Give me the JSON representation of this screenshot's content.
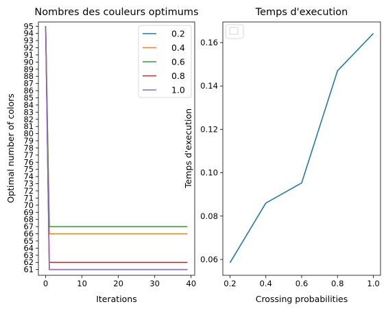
{
  "chart_data": [
    {
      "type": "line",
      "title": "Nombres des couleurs optimums",
      "xlabel": "Iterations",
      "ylabel": "Optimal number of colors",
      "xlim": [
        -2,
        41
      ],
      "ylim": [
        60.2,
        95.6
      ],
      "xticks": [
        0,
        10,
        20,
        30,
        40
      ],
      "yticks": [
        61,
        62,
        63,
        64,
        65,
        66,
        67,
        68,
        69,
        70,
        71,
        72,
        73,
        74,
        75,
        76,
        77,
        78,
        79,
        80,
        81,
        82,
        83,
        84,
        85,
        86,
        87,
        88,
        89,
        90,
        91,
        92,
        93,
        94,
        95
      ],
      "grid": false,
      "legend_position": "top-right",
      "series": [
        {
          "name": "0.2",
          "color": "#1f77b4",
          "x": [
            0,
            1,
            39
          ],
          "y": [
            95,
            61,
            61
          ]
        },
        {
          "name": "0.4",
          "color": "#ff7f0e",
          "x": [
            0,
            1,
            39
          ],
          "y": [
            95,
            66,
            66
          ]
        },
        {
          "name": "0.6",
          "color": "#2ca02c",
          "x": [
            0,
            1,
            39
          ],
          "y": [
            95,
            67,
            67
          ]
        },
        {
          "name": "0.8",
          "color": "#d62728",
          "x": [
            0,
            1,
            39
          ],
          "y": [
            95,
            62,
            62
          ]
        },
        {
          "name": "1.0",
          "color": "#9467bd",
          "x": [
            0,
            1,
            39
          ],
          "y": [
            95,
            61,
            61
          ]
        }
      ]
    },
    {
      "type": "line",
      "title": "Temps d'execution",
      "xlabel": "Crossing probabilities",
      "ylabel": "Temps d'execution",
      "xlim": [
        0.16,
        1.04
      ],
      "ylim": [
        0.0527,
        0.1695
      ],
      "xticks": [
        0.2,
        0.4,
        0.6,
        0.8,
        1.0
      ],
      "xtick_labels": [
        "0.2",
        "0.4",
        "0.6",
        "0.8",
        "1.0"
      ],
      "yticks": [
        0.06,
        0.08,
        0.1,
        0.12,
        0.14,
        0.16
      ],
      "ytick_labels": [
        "0.06",
        "0.08",
        "0.10",
        "0.12",
        "0.14",
        "0.16"
      ],
      "grid": false,
      "legend_position": "top-left",
      "legend_empty": true,
      "series": [
        {
          "color": "#1f77b4",
          "x": [
            0.2,
            0.4,
            0.6,
            0.8,
            1.0
          ],
          "y": [
            0.0585,
            0.086,
            0.0953,
            0.147,
            0.1642
          ]
        }
      ]
    }
  ]
}
